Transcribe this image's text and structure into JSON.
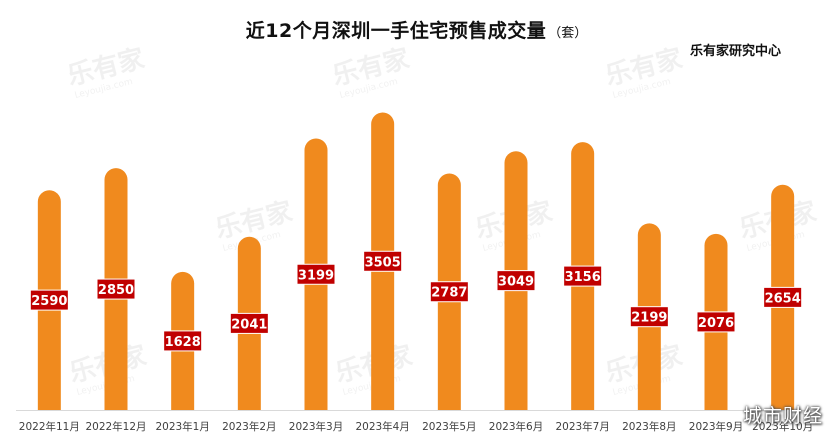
{
  "chart_data": {
    "type": "bar",
    "title": "近12个月深圳一手住宅预售成交量",
    "unit_label": "（套）",
    "categories": [
      "2022年11月",
      "2022年12月",
      "2023年1月",
      "2023年2月",
      "2023年3月",
      "2023年4月",
      "2023年5月",
      "2023年6月",
      "2023年7月",
      "2023年8月",
      "2023年9月",
      "2023年10月"
    ],
    "values": [
      2590,
      2850,
      1628,
      2041,
      3199,
      3505,
      2787,
      3049,
      3156,
      2199,
      2076,
      2654
    ],
    "data_labels": [
      "2590",
      "2850",
      "1628",
      "2041",
      "3199",
      "3505",
      "2787",
      "3049",
      "3156",
      "2199",
      "2076",
      "2654"
    ],
    "ylim": [
      0,
      3700
    ],
    "grid": false,
    "legend": "none",
    "colors": {
      "bar": "#F08A1E",
      "label_bg": "#C00000",
      "label_text": "#FFFFFF"
    }
  },
  "source": "乐有家研究中心",
  "watermark": {
    "brand": "乐有家",
    "domain": "Leyoujia.com"
  },
  "corner_mark": "城市财经"
}
